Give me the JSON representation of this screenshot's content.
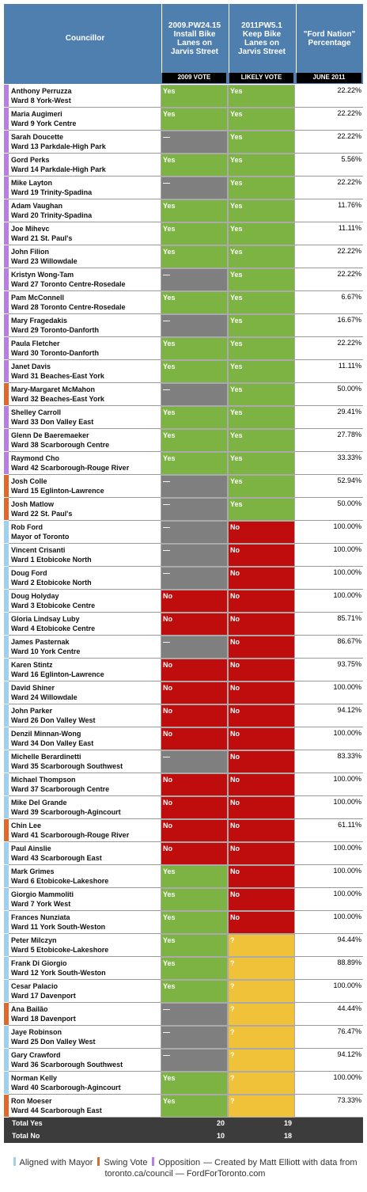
{
  "header": {
    "councillor": "Councillor",
    "columns": [
      {
        "title": "2009.PW24.15\nInstall Bike\nLanes on\nJarvis Street",
        "sub": "2009 VOTE"
      },
      {
        "title": "2011PW5.1\nKeep Bike\nLanes on\nJarvis Street",
        "sub": "LIKELY VOTE"
      },
      {
        "title": "\"Ford Nation\"\nPercentage",
        "sub": "JUNE 2011"
      }
    ]
  },
  "vote_colors": {
    "Yes": "#7cb342",
    "—": "#7f7f7f",
    "No": "#bf0d0d",
    "?": "#efc23a"
  },
  "rows": [
    {
      "name": "Anthony Perruzza",
      "ward": "Ward 8 York-West",
      "color": "#b77fe6",
      "vote_2009": "Yes",
      "vote_2011": "Yes",
      "percentage": "22.22%"
    },
    {
      "name": "Maria Augimeri",
      "ward": "Ward 9 York Centre",
      "color": "#b77fe6",
      "vote_2009": "Yes",
      "vote_2011": "Yes",
      "percentage": "22.22%"
    },
    {
      "name": "Sarah Doucette",
      "ward": "Ward 13 Parkdale-High Park",
      "color": "#b77fe6",
      "vote_2009": "—",
      "vote_2011": "Yes",
      "percentage": "22.22%"
    },
    {
      "name": "Gord Perks",
      "ward": "Ward 14 Parkdale-High Park",
      "color": "#b77fe6",
      "vote_2009": "Yes",
      "vote_2011": "Yes",
      "percentage": "5.56%"
    },
    {
      "name": "Mike Layton",
      "ward": "Ward 19 Trinity-Spadina",
      "color": "#b77fe6",
      "vote_2009": "—",
      "vote_2011": "Yes",
      "percentage": "22.22%"
    },
    {
      "name": "Adam Vaughan",
      "ward": "Ward 20 Trinity-Spadina",
      "color": "#b77fe6",
      "vote_2009": "Yes",
      "vote_2011": "Yes",
      "percentage": "11.76%"
    },
    {
      "name": "Joe Mihevc",
      "ward": "Ward 21 St. Paul's",
      "color": "#b77fe6",
      "vote_2009": "Yes",
      "vote_2011": "Yes",
      "percentage": "11.11%"
    },
    {
      "name": "John Filion",
      "ward": "Ward 23 Willowdale",
      "color": "#b77fe6",
      "vote_2009": "Yes",
      "vote_2011": "Yes",
      "percentage": "22.22%"
    },
    {
      "name": "Kristyn Wong-Tam",
      "ward": "Ward 27 Toronto Centre-Rosedale",
      "color": "#b77fe6",
      "vote_2009": "—",
      "vote_2011": "Yes",
      "percentage": "22.22%"
    },
    {
      "name": "Pam McConnell",
      "ward": "Ward 28 Toronto Centre-Rosedale",
      "color": "#b77fe6",
      "vote_2009": "Yes",
      "vote_2011": "Yes",
      "percentage": "6.67%"
    },
    {
      "name": "Mary Fragedakis",
      "ward": "Ward 29 Toronto-Danforth",
      "color": "#b77fe6",
      "vote_2009": "—",
      "vote_2011": "Yes",
      "percentage": "16.67%"
    },
    {
      "name": "Paula Fletcher",
      "ward": "Ward 30 Toronto-Danforth",
      "color": "#b77fe6",
      "vote_2009": "Yes",
      "vote_2011": "Yes",
      "percentage": "22.22%"
    },
    {
      "name": "Janet Davis",
      "ward": "Ward 31 Beaches-East York",
      "color": "#b77fe6",
      "vote_2009": "Yes",
      "vote_2011": "Yes",
      "percentage": "11.11%"
    },
    {
      "name": "Mary-Margaret McMahon",
      "ward": "Ward 32 Beaches-East York",
      "color": "#e0682a",
      "vote_2009": "—",
      "vote_2011": "Yes",
      "percentage": "50.00%"
    },
    {
      "name": "Shelley Carroll",
      "ward": "Ward 33 Don Valley East",
      "color": "#b77fe6",
      "vote_2009": "Yes",
      "vote_2011": "Yes",
      "percentage": "29.41%"
    },
    {
      "name": "Glenn De Baeremaeker",
      "ward": "Ward 38 Scarborough Centre",
      "color": "#b77fe6",
      "vote_2009": "Yes",
      "vote_2011": "Yes",
      "percentage": "27.78%"
    },
    {
      "name": "Raymond Cho",
      "ward": "Ward 42 Scarborough-Rouge River",
      "color": "#b77fe6",
      "vote_2009": "Yes",
      "vote_2011": "Yes",
      "percentage": "33.33%"
    },
    {
      "name": "Josh Colle",
      "ward": "Ward 15 Eglinton-Lawrence",
      "color": "#e0682a",
      "vote_2009": "—",
      "vote_2011": "Yes",
      "percentage": "52.94%"
    },
    {
      "name": "Josh Matlow",
      "ward": "Ward 22 St. Paul's",
      "color": "#e0682a",
      "vote_2009": "—",
      "vote_2011": "Yes",
      "percentage": "50.00%"
    },
    {
      "name": "Rob Ford",
      "ward": "Mayor of Toronto",
      "color": "#9fd0f0",
      "vote_2009": "—",
      "vote_2011": "No",
      "percentage": "100.00%"
    },
    {
      "name": "Vincent Crisanti",
      "ward": "Ward 1 Etobicoke North",
      "color": "#9fd0f0",
      "vote_2009": "—",
      "vote_2011": "No",
      "percentage": "100.00%"
    },
    {
      "name": "Doug Ford",
      "ward": "Ward 2 Etobicoke North",
      "color": "#9fd0f0",
      "vote_2009": "—",
      "vote_2011": "No",
      "percentage": "100.00%"
    },
    {
      "name": "Doug Holyday",
      "ward": "Ward 3 Etobicoke Centre",
      "color": "#9fd0f0",
      "vote_2009": "No",
      "vote_2011": "No",
      "percentage": "100.00%"
    },
    {
      "name": "Gloria Lindsay Luby",
      "ward": "Ward 4 Etobicoke Centre",
      "color": "#9fd0f0",
      "vote_2009": "No",
      "vote_2011": "No",
      "percentage": "85.71%"
    },
    {
      "name": "James Pasternak",
      "ward": "Ward 10 York Centre",
      "color": "#9fd0f0",
      "vote_2009": "—",
      "vote_2011": "No",
      "percentage": "86.67%"
    },
    {
      "name": "Karen Stintz",
      "ward": "Ward 16 Eglinton-Lawrence",
      "color": "#9fd0f0",
      "vote_2009": "No",
      "vote_2011": "No",
      "percentage": "93.75%"
    },
    {
      "name": "David Shiner",
      "ward": "Ward 24 Willowdale",
      "color": "#9fd0f0",
      "vote_2009": "No",
      "vote_2011": "No",
      "percentage": "100.00%"
    },
    {
      "name": "John Parker",
      "ward": "Ward 26 Don Valley West",
      "color": "#9fd0f0",
      "vote_2009": "No",
      "vote_2011": "No",
      "percentage": "94.12%"
    },
    {
      "name": "Denzil Minnan-Wong",
      "ward": "Ward 34 Don Valley East",
      "color": "#9fd0f0",
      "vote_2009": "No",
      "vote_2011": "No",
      "percentage": "100.00%"
    },
    {
      "name": "Michelle Berardinetti",
      "ward": "Ward 35 Scarborough Southwest",
      "color": "#9fd0f0",
      "vote_2009": "—",
      "vote_2011": "No",
      "percentage": "83.33%"
    },
    {
      "name": "Michael Thompson",
      "ward": "Ward 37 Scarborough Centre",
      "color": "#9fd0f0",
      "vote_2009": "No",
      "vote_2011": "No",
      "percentage": "100.00%"
    },
    {
      "name": "Mike Del Grande",
      "ward": "Ward 39 Scarborough-Agincourt",
      "color": "#9fd0f0",
      "vote_2009": "No",
      "vote_2011": "No",
      "percentage": "100.00%"
    },
    {
      "name": "Chin Lee",
      "ward": "Ward 41 Scarborough-Rouge River",
      "color": "#e0682a",
      "vote_2009": "No",
      "vote_2011": "No",
      "percentage": "61.11%"
    },
    {
      "name": "Paul Ainslie",
      "ward": "Ward 43 Scarborough East",
      "color": "#9fd0f0",
      "vote_2009": "No",
      "vote_2011": "No",
      "percentage": "100.00%"
    },
    {
      "name": "Mark Grimes",
      "ward": "Ward 6 Etobicoke-Lakeshore",
      "color": "#9fd0f0",
      "vote_2009": "Yes",
      "vote_2011": "No",
      "percentage": "100.00%"
    },
    {
      "name": "Giorgio Mammoliti",
      "ward": "Ward 7 York West",
      "color": "#9fd0f0",
      "vote_2009": "Yes",
      "vote_2011": "No",
      "percentage": "100.00%"
    },
    {
      "name": "Frances Nunziata",
      "ward": "Ward 11 York South-Weston",
      "color": "#9fd0f0",
      "vote_2009": "Yes",
      "vote_2011": "No",
      "percentage": "100.00%"
    },
    {
      "name": "Peter Milczyn",
      "ward": "Ward 5 Etobicoke-Lakeshore",
      "color": "#9fd0f0",
      "vote_2009": "Yes",
      "vote_2011": "?",
      "percentage": "94.44%"
    },
    {
      "name": "Frank Di Giorgio",
      "ward": "Ward 12 York South-Weston",
      "color": "#9fd0f0",
      "vote_2009": "Yes",
      "vote_2011": "?",
      "percentage": "88.89%"
    },
    {
      "name": "Cesar Palacio",
      "ward": "Ward 17 Davenport",
      "color": "#9fd0f0",
      "vote_2009": "Yes",
      "vote_2011": "?",
      "percentage": "100.00%"
    },
    {
      "name": "Ana Bailão",
      "ward": "Ward 18 Davenport",
      "color": "#e0682a",
      "vote_2009": "—",
      "vote_2011": "?",
      "percentage": "44.44%"
    },
    {
      "name": "Jaye Robinson",
      "ward": "Ward 25 Don Valley West",
      "color": "#9fd0f0",
      "vote_2009": "—",
      "vote_2011": "?",
      "percentage": "76.47%"
    },
    {
      "name": "Gary Crawford",
      "ward": "Ward 36 Scarborough Southwest",
      "color": "#9fd0f0",
      "vote_2009": "—",
      "vote_2011": "?",
      "percentage": "94.12%"
    },
    {
      "name": "Norman Kelly",
      "ward": "Ward 40 Scarborough-Agincourt",
      "color": "#9fd0f0",
      "vote_2009": "Yes",
      "vote_2011": "?",
      "percentage": "100.00%"
    },
    {
      "name": "Ron Moeser",
      "ward": "Ward 44 Scarborough East",
      "color": "#e0682a",
      "vote_2009": "Yes",
      "vote_2011": "?",
      "percentage": "73.33%"
    }
  ],
  "totals": [
    {
      "label": "Total Yes",
      "values": [
        20,
        19
      ]
    },
    {
      "label": "Total No",
      "values": [
        10,
        18
      ]
    }
  ],
  "legend": [
    {
      "label": "Aligned with Mayor",
      "color": "#9fd0f0"
    },
    {
      "label": "Swing Vote",
      "color": "#e0682a"
    },
    {
      "label": "Opposition",
      "color": "#b77fe6"
    }
  ],
  "credit": "— Created by Matt Elliott with data from toronto.ca/council — FordForToronto.com"
}
